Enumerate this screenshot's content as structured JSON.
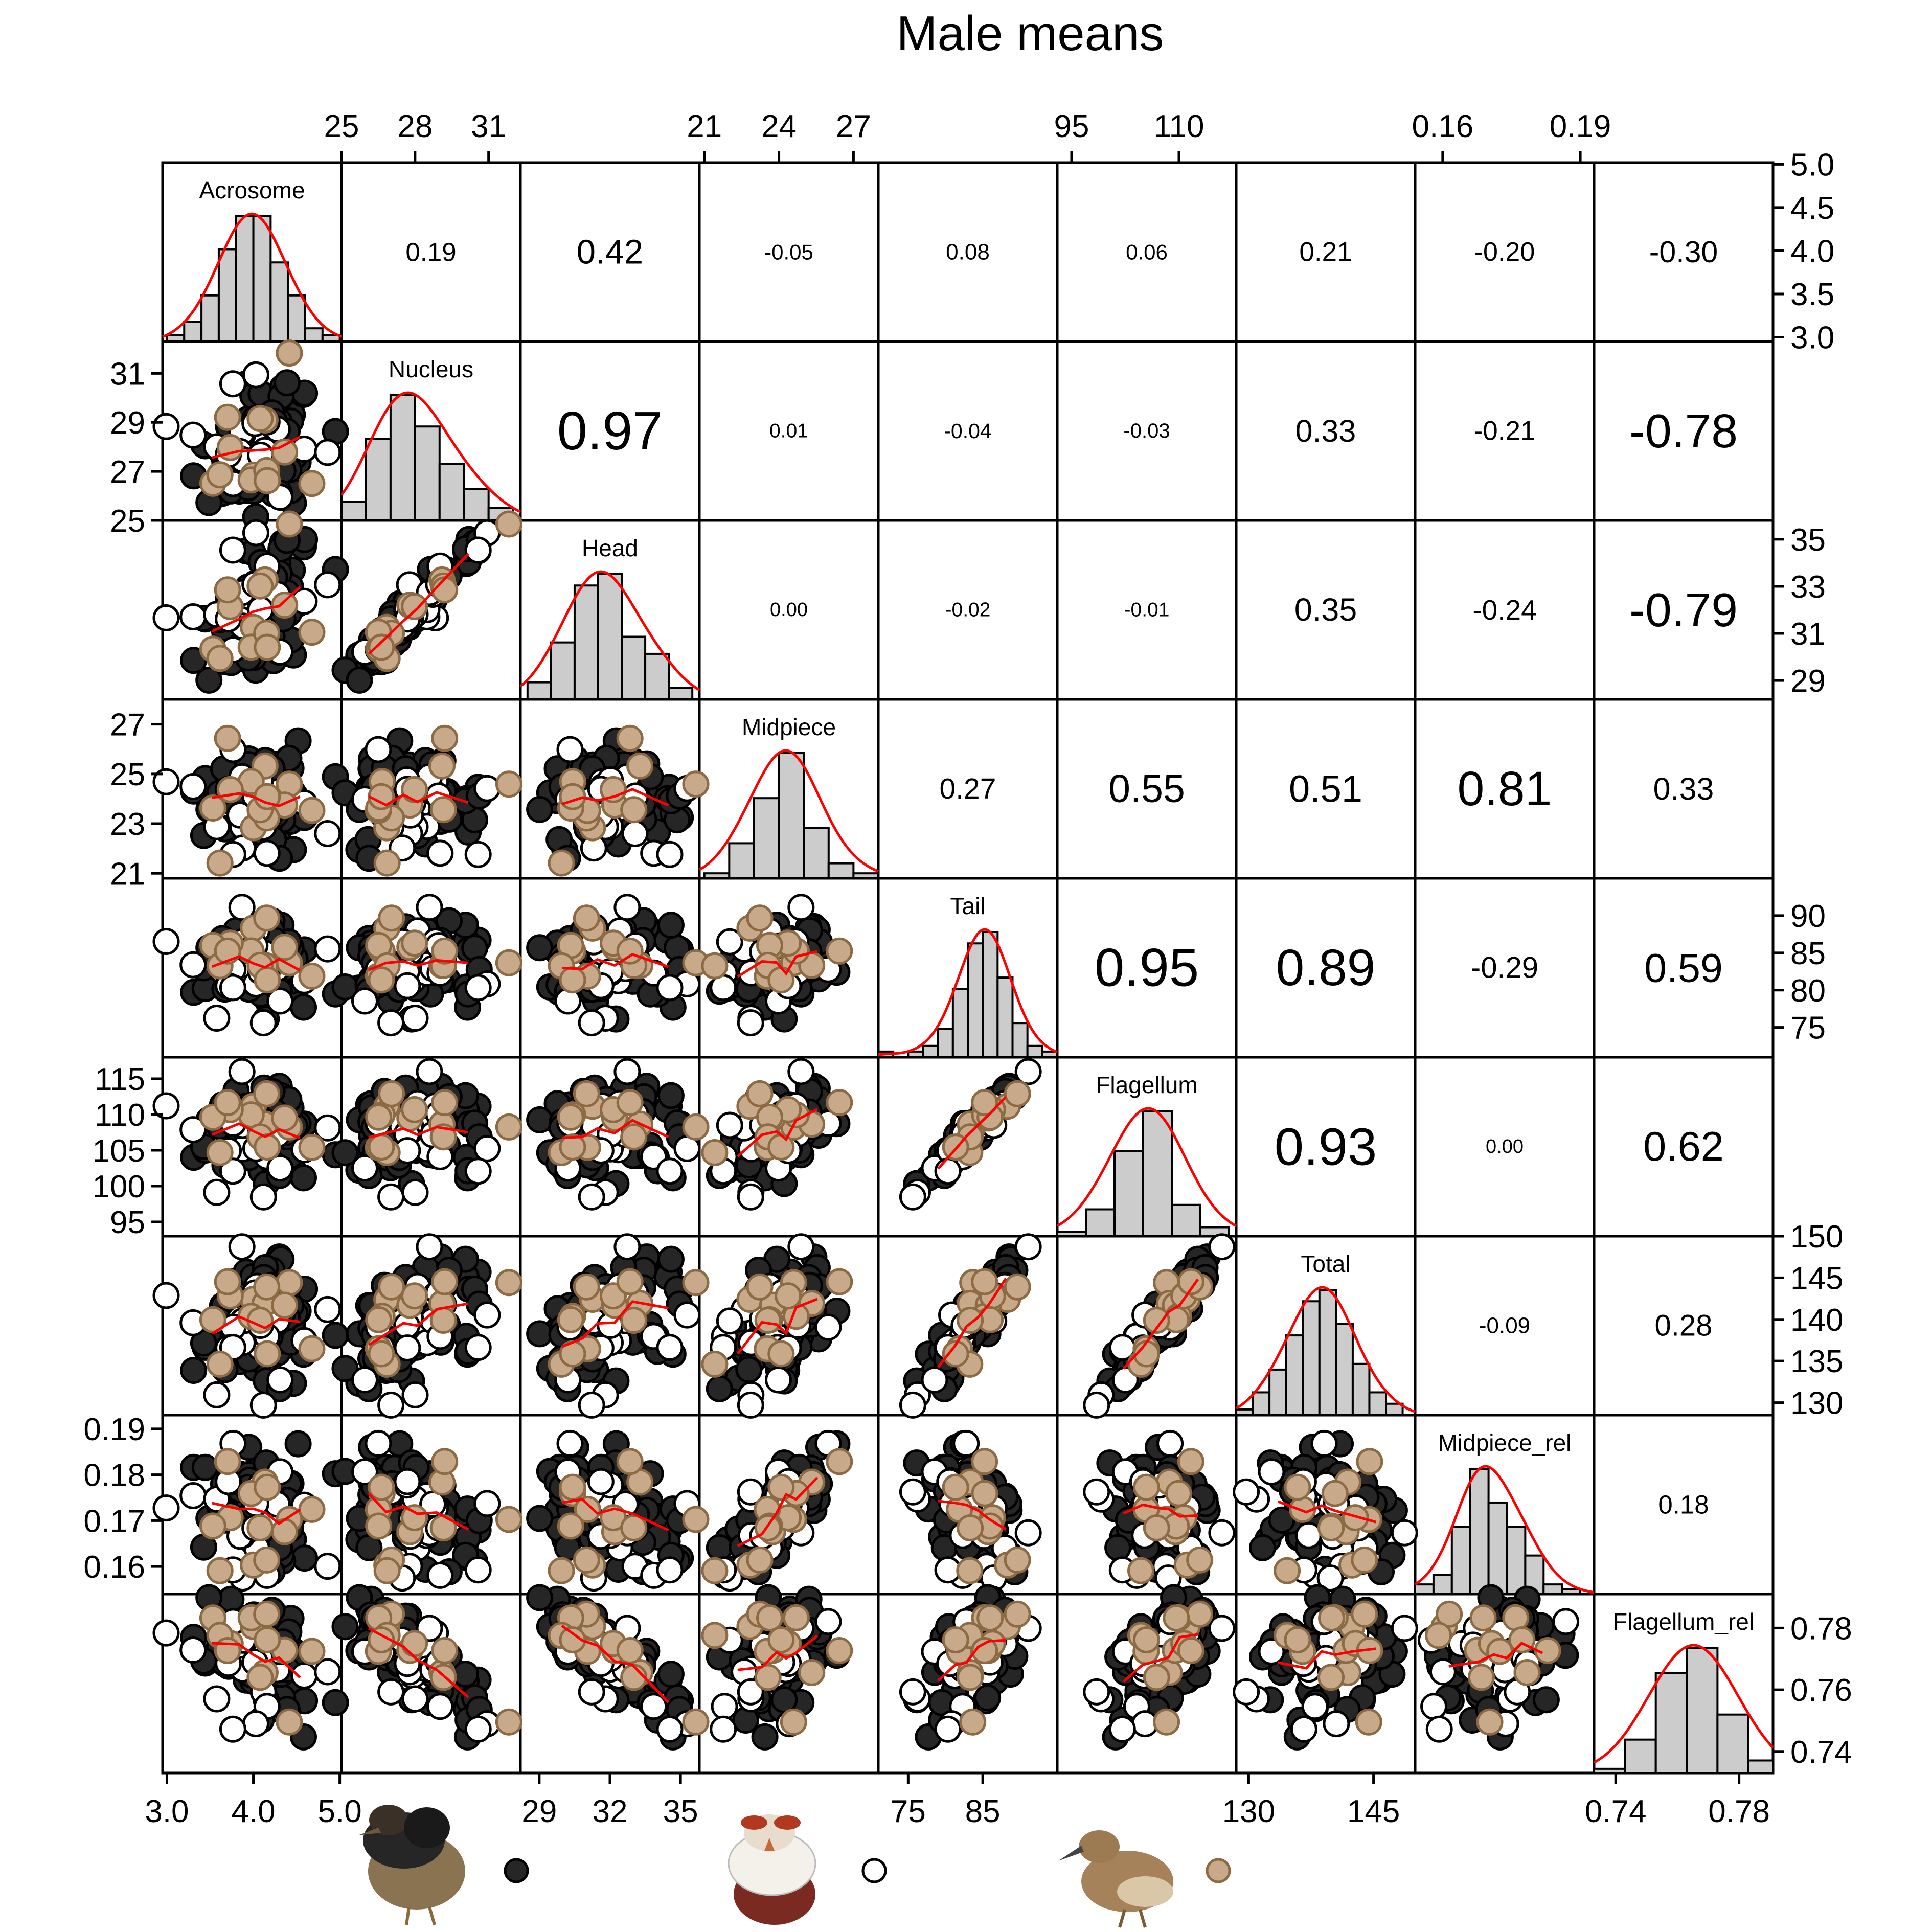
{
  "chart_data": {
    "type": "scatter",
    "title": "Male means",
    "variables": [
      "Acrosome",
      "Nucleus",
      "Head",
      "Midpiece",
      "Tail",
      "Flagellum",
      "Total",
      "Midpiece_rel",
      "Flagellum_rel"
    ],
    "ranges": [
      [
        2.95,
        5.02
      ],
      [
        25,
        32.3
      ],
      [
        28.2,
        35.8
      ],
      [
        20.8,
        28
      ],
      [
        71,
        95
      ],
      [
        93,
        118
      ],
      [
        128.5,
        150
      ],
      [
        0.154,
        0.193
      ],
      [
        0.733,
        0.791
      ]
    ],
    "ticks": [
      {
        "values": [
          3.0,
          3.5,
          4.0,
          4.5,
          5.0
        ],
        "labels": [
          "3.0",
          "3.5",
          "4.0",
          "4.5",
          "5.0"
        ]
      },
      {
        "values": [
          25,
          27,
          29,
          31
        ],
        "labels": [
          "25",
          "27",
          "29",
          "31"
        ]
      },
      {
        "values": [
          29,
          31,
          33,
          35
        ],
        "labels": [
          "29",
          "31",
          "33",
          "35"
        ]
      },
      {
        "values": [
          21,
          23,
          25,
          27
        ],
        "labels": [
          "21",
          "23",
          "25",
          "27"
        ]
      },
      {
        "values": [
          75,
          80,
          85,
          90
        ],
        "labels": [
          "75",
          "80",
          "85",
          "90"
        ]
      },
      {
        "values": [
          95,
          100,
          105,
          110,
          115
        ],
        "labels": [
          "95",
          "100",
          "105",
          "110",
          "115"
        ]
      },
      {
        "values": [
          130,
          135,
          140,
          145,
          150
        ],
        "labels": [
          "130",
          "135",
          "140",
          "145",
          "150"
        ]
      },
      {
        "values": [
          0.16,
          0.17,
          0.18,
          0.19
        ],
        "labels": [
          "0.16",
          "0.17",
          "0.18",
          "0.19"
        ]
      },
      {
        "values": [
          0.74,
          0.76,
          0.78
        ],
        "labels": [
          "0.74",
          "0.76",
          "0.78"
        ]
      }
    ],
    "top_axis": [
      {
        "col": 1,
        "values": [
          25,
          28,
          31
        ],
        "labels": [
          "25",
          "28",
          "31"
        ]
      },
      {
        "col": 3,
        "values": [
          21,
          24,
          27
        ],
        "labels": [
          "21",
          "24",
          "27"
        ]
      },
      {
        "col": 5,
        "values": [
          95,
          110
        ],
        "labels": [
          "95",
          "110"
        ]
      },
      {
        "col": 7,
        "values": [
          0.16,
          0.19
        ],
        "labels": [
          "0.16",
          "0.19"
        ]
      }
    ],
    "bottom_axis": [
      {
        "col": 0,
        "values": [
          3.0,
          4.0,
          5.0
        ],
        "labels": [
          "3.0",
          "4.0",
          "5.0"
        ]
      },
      {
        "col": 2,
        "values": [
          29,
          32,
          35
        ],
        "labels": [
          "29",
          "32",
          "35"
        ]
      },
      {
        "col": 4,
        "values": [
          75,
          85
        ],
        "labels": [
          "75",
          "85"
        ]
      },
      {
        "col": 6,
        "values": [
          130,
          145
        ],
        "labels": [
          "130",
          "145"
        ]
      },
      {
        "col": 8,
        "values": [
          0.74,
          0.78
        ],
        "labels": [
          "0.74",
          "0.78"
        ]
      }
    ],
    "right_axis": [
      {
        "row": 0,
        "values": [
          3.0,
          3.5,
          4.0,
          4.5,
          5.0
        ],
        "labels": [
          "3.0",
          "3.5",
          "4.0",
          "4.5",
          "5.0"
        ]
      },
      {
        "row": 2,
        "values": [
          29,
          31,
          33,
          35
        ],
        "labels": [
          "29",
          "31",
          "33",
          "35"
        ]
      },
      {
        "row": 4,
        "values": [
          75,
          80,
          85,
          90
        ],
        "labels": [
          "75",
          "80",
          "85",
          "90"
        ]
      },
      {
        "row": 6,
        "values": [
          130,
          135,
          140,
          145,
          150
        ],
        "labels": [
          "130",
          "135",
          "140",
          "145",
          "150"
        ]
      },
      {
        "row": 8,
        "values": [
          0.74,
          0.76,
          0.78
        ],
        "labels": [
          "0.74",
          "0.76",
          "0.78"
        ]
      }
    ],
    "left_axis": [
      {
        "row": 1,
        "values": [
          25,
          27,
          29,
          31
        ],
        "labels": [
          "25",
          "27",
          "29",
          "31"
        ]
      },
      {
        "row": 3,
        "values": [
          21,
          23,
          25,
          27
        ],
        "labels": [
          "21",
          "23",
          "25",
          "27"
        ]
      },
      {
        "row": 5,
        "values": [
          95,
          100,
          105,
          110,
          115
        ],
        "labels": [
          "95",
          "100",
          "105",
          "110",
          "115"
        ]
      },
      {
        "row": 7,
        "values": [
          0.16,
          0.17,
          0.18,
          0.19
        ],
        "labels": [
          "0.16",
          "0.17",
          "0.18",
          "0.19"
        ]
      }
    ],
    "correlations": [
      [
        null,
        "0.19",
        "0.42",
        "-0.05",
        "0.08",
        "0.06",
        "0.21",
        "-0.20",
        "-0.30"
      ],
      [
        null,
        null,
        "0.97",
        "0.01",
        "-0.04",
        "-0.03",
        "0.33",
        "-0.21",
        "-0.78"
      ],
      [
        null,
        null,
        null,
        "0.00",
        "-0.02",
        "-0.01",
        "0.35",
        "-0.24",
        "-0.79"
      ],
      [
        null,
        null,
        null,
        null,
        "0.27",
        "0.55",
        "0.51",
        "0.81",
        "0.33"
      ],
      [
        null,
        null,
        null,
        null,
        null,
        "0.95",
        "0.89",
        "-0.29",
        "0.59"
      ],
      [
        null,
        null,
        null,
        null,
        null,
        null,
        "0.93",
        "0.00",
        "0.62"
      ],
      [
        null,
        null,
        null,
        null,
        null,
        null,
        null,
        "-0.09",
        "0.28"
      ],
      [
        null,
        null,
        null,
        null,
        null,
        null,
        null,
        null,
        "0.18"
      ]
    ],
    "histograms": [
      {
        "breaks": [
          3.0,
          3.2,
          3.4,
          3.6,
          3.8,
          4.0,
          4.2,
          4.4,
          4.6,
          4.8,
          5.0
        ],
        "counts": [
          1,
          3,
          7,
          14,
          19,
          19,
          12,
          7,
          2,
          1
        ]
      },
      {
        "breaks": [
          25,
          26,
          27,
          28,
          29,
          30,
          31,
          32
        ],
        "counts": [
          3,
          13,
          20,
          15,
          9,
          5,
          2
        ]
      },
      {
        "breaks": [
          28.5,
          29.5,
          30.5,
          31.5,
          32.5,
          33.5,
          34.5,
          35.5
        ],
        "counts": [
          3,
          10,
          20,
          22,
          11,
          8,
          2
        ]
      },
      {
        "breaks": [
          21,
          22,
          23,
          24,
          25,
          26,
          27,
          28
        ],
        "counts": [
          1,
          7,
          16,
          25,
          10,
          3,
          1
        ]
      },
      {
        "breaks": [
          71,
          73,
          75,
          77,
          79,
          81,
          83,
          85,
          87,
          89,
          91,
          93,
          95
        ],
        "counts": [
          1,
          0,
          1,
          2,
          5,
          12,
          20,
          22,
          14,
          6,
          2,
          1
        ]
      },
      {
        "breaks": [
          93,
          97,
          101,
          105,
          109,
          113,
          117
        ],
        "counts": [
          1,
          6,
          19,
          28,
          7,
          2
        ]
      },
      {
        "breaks": [
          128.5,
          130.5,
          132.5,
          134.5,
          136.5,
          138.5,
          140.5,
          142.5,
          144.5,
          146.5,
          148.5
        ],
        "counts": [
          1,
          4,
          8,
          14,
          20,
          22,
          16,
          9,
          4,
          2
        ]
      },
      {
        "breaks": [
          0.154,
          0.158,
          0.162,
          0.166,
          0.17,
          0.174,
          0.178,
          0.182,
          0.186,
          0.19
        ],
        "counts": [
          2,
          4,
          14,
          26,
          19,
          14,
          8,
          2,
          1
        ]
      },
      {
        "breaks": [
          0.733,
          0.743,
          0.753,
          0.763,
          0.773,
          0.783,
          0.791
        ],
        "counts": [
          1,
          8,
          24,
          30,
          14,
          3
        ]
      }
    ],
    "species": [
      {
        "fill": "#262626",
        "count": 66
      },
      {
        "fill": "#ffffff",
        "count": 22
      },
      {
        "fill": "#c8a98a",
        "count": 13
      }
    ],
    "colors": {
      "loess": "#ff0000",
      "hist_fill": "#cccccc",
      "density": "#ff0000"
    }
  }
}
